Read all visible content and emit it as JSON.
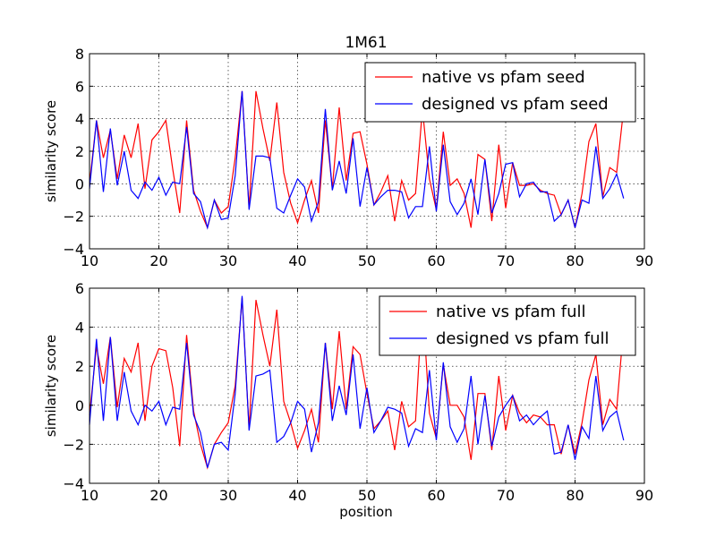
{
  "chart_data": [
    {
      "type": "line",
      "title": "1M61",
      "xlabel": "",
      "ylabel": "similarity score",
      "xlim": [
        10,
        90
      ],
      "ylim": [
        -4,
        8
      ],
      "xticks": [
        "10",
        "20",
        "30",
        "40",
        "50",
        "60",
        "70",
        "80",
        "90"
      ],
      "yticks": [
        "−4",
        "−2",
        "0",
        "2",
        "4",
        "6",
        "8"
      ],
      "grid": true,
      "legend_position": "top-right",
      "x_start": 10,
      "series": [
        {
          "name": "native vs pfam seed",
          "color": "#ff0000",
          "values": [
            0.0,
            3.9,
            1.6,
            3.3,
            0.3,
            3.0,
            1.6,
            3.7,
            -0.3,
            2.7,
            3.2,
            3.9,
            0.9,
            -1.8,
            3.9,
            -0.4,
            -1.7,
            -2.7,
            -1.0,
            -1.8,
            -1.4,
            1.6,
            5.7,
            -1.5,
            5.7,
            3.4,
            1.4,
            5.0,
            0.7,
            -1.2,
            -2.4,
            -1.0,
            0.2,
            -1.8,
            3.9,
            -0.3,
            4.7,
            0.2,
            3.1,
            3.2,
            1.2,
            -1.3,
            -0.5,
            0.5,
            -2.3,
            0.2,
            -1.0,
            -0.6,
            4.6,
            0.3,
            -1.6,
            3.2,
            -0.1,
            0.3,
            -0.6,
            -2.7,
            1.8,
            1.5,
            -2.3,
            2.4,
            -1.5,
            1.3,
            -0.1,
            -0.1,
            0.0,
            -0.4,
            -0.6,
            -0.7,
            -1.9,
            -1.0,
            -2.7,
            -0.6,
            2.6,
            3.7,
            -0.8,
            1.0,
            0.7,
            4.6
          ]
        },
        {
          "name": "designed vs pfam seed",
          "color": "#0000ff",
          "values": [
            -0.3,
            3.9,
            -0.5,
            3.4,
            -0.1,
            2.0,
            -0.4,
            -0.9,
            0.1,
            -0.4,
            0.4,
            -0.7,
            0.1,
            0.0,
            3.5,
            -0.6,
            -1.1,
            -2.7,
            -1.0,
            -2.2,
            -2.1,
            0.5,
            5.7,
            -1.6,
            1.7,
            1.7,
            1.6,
            -1.5,
            -1.8,
            -0.7,
            0.3,
            -0.2,
            -2.3,
            -1.1,
            4.6,
            -0.4,
            1.4,
            -0.6,
            2.8,
            -1.4,
            1.0,
            -1.3,
            -0.8,
            -0.4,
            -0.4,
            -0.5,
            -2.1,
            -1.4,
            -1.4,
            2.3,
            -1.7,
            2.4,
            -1.1,
            -1.9,
            -1.2,
            0.3,
            -1.9,
            1.5,
            -1.8,
            -0.6,
            1.2,
            1.3,
            -0.8,
            0.0,
            0.1,
            -0.5,
            -0.5,
            -2.3,
            -1.9,
            -1.0,
            -2.7,
            -1.0,
            -1.2,
            2.3,
            -0.9,
            -0.3,
            0.6,
            -0.9
          ]
        }
      ]
    },
    {
      "type": "line",
      "title": "",
      "xlabel": "position",
      "ylabel": "similarity score",
      "xlim": [
        10,
        90
      ],
      "ylim": [
        -4,
        6
      ],
      "xticks": [
        "10",
        "20",
        "30",
        "40",
        "50",
        "60",
        "70",
        "80",
        "90"
      ],
      "yticks": [
        "−4",
        "−2",
        "0",
        "2",
        "4",
        "6"
      ],
      "grid": true,
      "legend_position": "top-right",
      "x_start": 10,
      "series": [
        {
          "name": "native vs pfam full",
          "color": "#ff0000",
          "values": [
            -0.5,
            3.0,
            1.1,
            3.5,
            -0.1,
            2.4,
            1.7,
            3.2,
            -0.8,
            2.0,
            2.9,
            2.8,
            0.9,
            -2.1,
            3.6,
            -0.3,
            -2.0,
            -3.2,
            -2.0,
            -1.4,
            -0.9,
            1.0,
            5.5,
            -1.2,
            5.4,
            3.6,
            2.0,
            4.9,
            0.2,
            -0.9,
            -2.2,
            -1.3,
            -0.2,
            -1.9,
            3.2,
            -0.2,
            3.8,
            -0.2,
            3.0,
            2.6,
            0.6,
            -1.2,
            -0.8,
            -0.3,
            -2.3,
            0.2,
            -1.1,
            -0.8,
            5.4,
            -0.4,
            -1.7,
            2.1,
            0.0,
            0.0,
            -0.6,
            -2.8,
            0.6,
            0.6,
            -2.3,
            1.5,
            -1.3,
            0.5,
            -0.4,
            -0.9,
            -0.5,
            -0.6,
            -1.0,
            -1.0,
            -2.5,
            -1.0,
            -2.5,
            -0.9,
            1.3,
            2.6,
            -1.0,
            0.3,
            -0.2,
            4.0
          ]
        },
        {
          "name": "designed vs pfam full",
          "color": "#0000ff",
          "values": [
            -1.0,
            3.4,
            -0.8,
            3.5,
            -0.8,
            1.7,
            -0.3,
            -1.0,
            0.0,
            -0.3,
            0.2,
            -1.0,
            -0.1,
            -0.2,
            3.2,
            -0.5,
            -1.4,
            -3.2,
            -2.0,
            -1.9,
            -2.3,
            0.6,
            5.6,
            -1.3,
            1.5,
            1.6,
            1.8,
            -1.9,
            -1.6,
            -0.9,
            0.2,
            -0.2,
            -2.4,
            -0.9,
            3.2,
            -0.8,
            1.0,
            -0.5,
            2.6,
            -1.2,
            0.9,
            -1.4,
            -0.8,
            -0.1,
            -0.2,
            -0.4,
            -2.1,
            -1.2,
            -1.4,
            1.8,
            -1.8,
            2.2,
            -1.1,
            -1.9,
            -1.2,
            1.5,
            -2.0,
            0.5,
            -2.1,
            -0.6,
            0.0,
            0.5,
            -0.8,
            -0.5,
            -1.0,
            -0.6,
            -0.3,
            -2.5,
            -2.4,
            -1.0,
            -2.8,
            -1.1,
            -1.7,
            1.5,
            -1.3,
            -0.6,
            -0.3,
            -1.8
          ]
        }
      ]
    }
  ]
}
